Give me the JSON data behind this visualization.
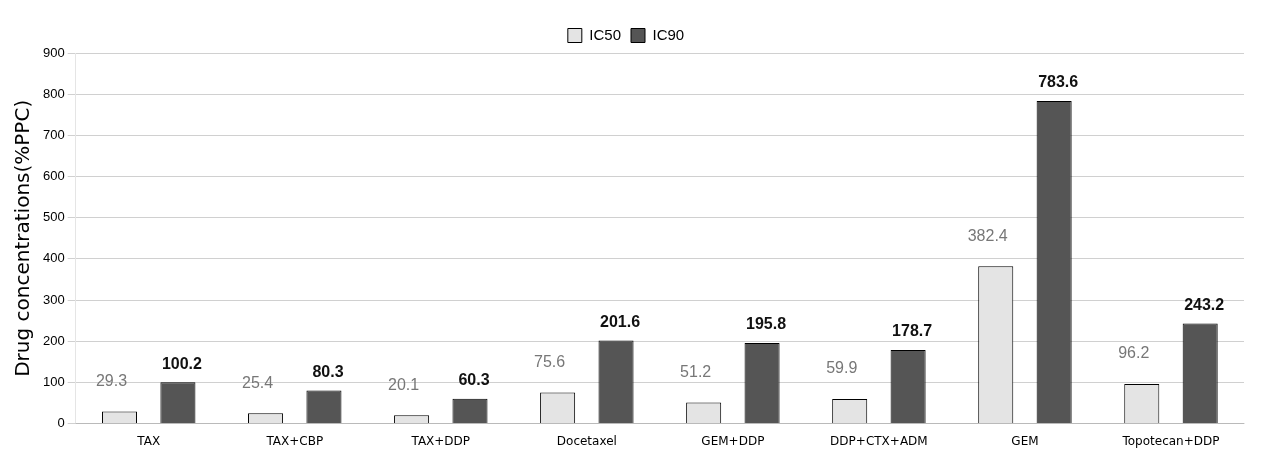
{
  "chart_data": {
    "type": "bar",
    "ylabel": "Drug concentrations(%PPC)",
    "categories": [
      "TAX",
      "TAX+CBP",
      "TAX+DDP",
      "Docetaxel",
      "GEM+DDP",
      "DDP+CTX+ADM",
      "GEM",
      "Topotecan+DDP"
    ],
    "series": [
      {
        "name": "IC50",
        "color": "#e4e4e4",
        "values": [
          29.3,
          25.4,
          20.1,
          75.6,
          51.2,
          59.9,
          382.4,
          96.2
        ]
      },
      {
        "name": "IC90",
        "color": "#555555",
        "values": [
          100.2,
          80.3,
          60.3,
          201.6,
          195.8,
          178.7,
          783.6,
          243.2
        ]
      }
    ],
    "ylim": [
      0,
      900
    ],
    "yticks": [
      0,
      100,
      200,
      300,
      400,
      500,
      600,
      700,
      800,
      900
    ],
    "grid": "y",
    "legend": "top",
    "data_labels": true
  }
}
